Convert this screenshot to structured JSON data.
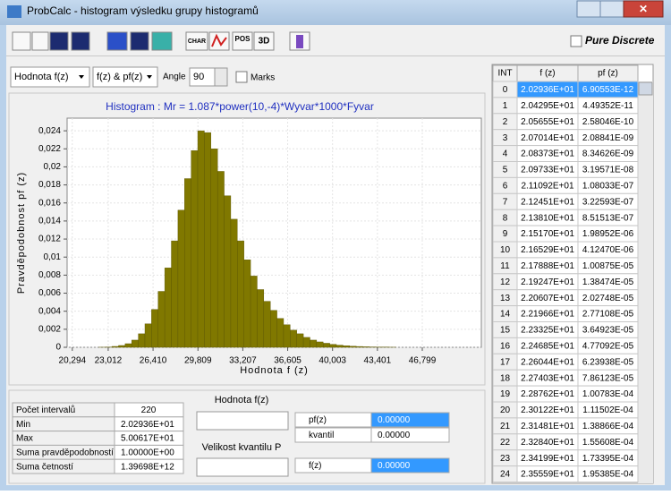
{
  "window": {
    "title": "ProbCalc - histogram  výsledku grupy histogramů"
  },
  "toolbar": {
    "char": "CHAR",
    "pos": "POS",
    "three_d": "3D",
    "pure_discrete": "Pure Discrete"
  },
  "controls": {
    "mode": "Hodnota f(z)",
    "series": "f(z) & pf(z)",
    "angle_label": "Angle",
    "angle": "90",
    "marks": "Marks"
  },
  "chart_data": {
    "type": "histogram",
    "title": "Histogram : Mr = 1.087*power(10,-4)*Wyvar*1000*Fyvar",
    "xlabel": "Hodnota   f (z)",
    "ylabel": "Pravděpodobnost   pf (z)",
    "color": "#807800",
    "bins": [
      20.294,
      20.794,
      21.294,
      21.794,
      22.294,
      22.794,
      23.294,
      23.794,
      24.294,
      24.794,
      25.294,
      25.794,
      26.294,
      26.794,
      27.294,
      27.794,
      28.294,
      28.794,
      29.294,
      29.794,
      30.294,
      30.794,
      31.294,
      31.794,
      32.294,
      32.794,
      33.294,
      33.794,
      34.294,
      34.794,
      35.294,
      35.794,
      36.294,
      36.794,
      37.294,
      37.794,
      38.294,
      38.794,
      39.294,
      39.794,
      40.294,
      40.794,
      41.294,
      41.794,
      42.294,
      42.794,
      43.294,
      43.794,
      44.294,
      44.794,
      45.294,
      45.794,
      46.294,
      46.794,
      47.294,
      47.794,
      48.294,
      48.794,
      49.294,
      49.794,
      50.294
    ],
    "values": [
      0,
      0,
      0,
      0,
      1e-05,
      3e-05,
      0.0001,
      0.0002,
      0.0004,
      0.0008,
      0.0015,
      0.0026,
      0.0042,
      0.0062,
      0.0088,
      0.0118,
      0.0152,
      0.0187,
      0.0218,
      0.024,
      0.0238,
      0.022,
      0.0195,
      0.0168,
      0.0142,
      0.0118,
      0.0097,
      0.0079,
      0.0064,
      0.0051,
      0.0041,
      0.0032,
      0.0025,
      0.0019,
      0.0015,
      0.0011,
      0.0008,
      0.0006,
      0.00045,
      0.00033,
      0.00024,
      0.00017,
      0.00012,
      9e-05,
      6e-05,
      4e-05,
      3e-05,
      2e-05,
      1e-05,
      0,
      0,
      0,
      0,
      0,
      0,
      0,
      0,
      0,
      0,
      0
    ],
    "xlim": [
      19.9,
      51.27
    ],
    "ylim": [
      0,
      0.0254
    ],
    "xticks": [
      {
        "value": 20.294,
        "label": "20,294"
      },
      {
        "value": 23.012,
        "label": "23,012"
      },
      {
        "value": 26.41,
        "label": "26,410"
      },
      {
        "value": 29.809,
        "label": "29,809"
      },
      {
        "value": 33.207,
        "label": "33,207"
      },
      {
        "value": 36.605,
        "label": "36,605"
      },
      {
        "value": 40.003,
        "label": "40,003"
      },
      {
        "value": 43.401,
        "label": "43,401"
      },
      {
        "value": 46.799,
        "label": "46,799"
      }
    ],
    "yticks": [
      0,
      {
        "value": 0.002,
        "label": "0,002"
      },
      {
        "value": 0.004,
        "label": "0,004"
      },
      {
        "value": 0.006,
        "label": "0,006"
      },
      {
        "value": 0.008,
        "label": "0,008"
      },
      {
        "value": 0.01,
        "label": "0,01"
      },
      {
        "value": 0.012,
        "label": "0,012"
      },
      {
        "value": 0.014,
        "label": "0,014"
      },
      {
        "value": 0.016,
        "label": "0,016"
      },
      {
        "value": 0.018,
        "label": "0,018"
      },
      {
        "value": 0.02,
        "label": "0,02"
      },
      {
        "value": 0.022,
        "label": "0,022"
      },
      {
        "value": 0.024,
        "label": "0,024"
      }
    ],
    "grid": true
  },
  "table": {
    "columns": [
      "INT",
      "f (z)",
      "pf (z)"
    ],
    "rows": [
      [
        "0",
        "2.02936E+01",
        "6.90553E-12"
      ],
      [
        "1",
        "2.04295E+01",
        "4.49352E-11"
      ],
      [
        "2",
        "2.05655E+01",
        "2.58046E-10"
      ],
      [
        "3",
        "2.07014E+01",
        "2.08841E-09"
      ],
      [
        "4",
        "2.08373E+01",
        "8.34626E-09"
      ],
      [
        "5",
        "2.09733E+01",
        "3.19571E-08"
      ],
      [
        "6",
        "2.11092E+01",
        "1.08033E-07"
      ],
      [
        "7",
        "2.12451E+01",
        "3.22593E-07"
      ],
      [
        "8",
        "2.13810E+01",
        "8.51513E-07"
      ],
      [
        "9",
        "2.15170E+01",
        "1.98952E-06"
      ],
      [
        "10",
        "2.16529E+01",
        "4.12470E-06"
      ],
      [
        "11",
        "2.17888E+01",
        "1.00875E-05"
      ],
      [
        "12",
        "2.19247E+01",
        "1.38474E-05"
      ],
      [
        "13",
        "2.20607E+01",
        "2.02748E-05"
      ],
      [
        "14",
        "2.21966E+01",
        "2.77108E-05"
      ],
      [
        "15",
        "2.23325E+01",
        "3.64923E-05"
      ],
      [
        "16",
        "2.24685E+01",
        "4.77092E-05"
      ],
      [
        "17",
        "2.26044E+01",
        "6.23938E-05"
      ],
      [
        "18",
        "2.27403E+01",
        "7.86123E-05"
      ],
      [
        "19",
        "2.28762E+01",
        "1.00783E-04"
      ],
      [
        "20",
        "2.30122E+01",
        "1.11502E-04"
      ],
      [
        "21",
        "2.31481E+01",
        "1.38866E-04"
      ],
      [
        "22",
        "2.32840E+01",
        "1.55608E-04"
      ],
      [
        "23",
        "2.34199E+01",
        "1.73395E-04"
      ],
      [
        "24",
        "2.35559E+01",
        "1.95385E-04"
      ]
    ]
  },
  "stats": [
    [
      "Počet intervalů",
      "220"
    ],
    [
      "Min",
      "2.02936E+01"
    ],
    [
      "Max",
      "5.00617E+01"
    ],
    [
      "Suma pravděpodobností",
      "1.00000E+00"
    ],
    [
      "Suma četností",
      "1.39698E+12"
    ]
  ],
  "quantile": {
    "value_title": "Hodnota f(z)",
    "pf_label": "pf(z)",
    "pf_value": "0.00000",
    "kvantil_label": "kvantil",
    "kvantil_value": "0.00000",
    "p_title": "Velikost kvantilu P",
    "f_label": "f(z)",
    "f_value": "0.00000"
  }
}
